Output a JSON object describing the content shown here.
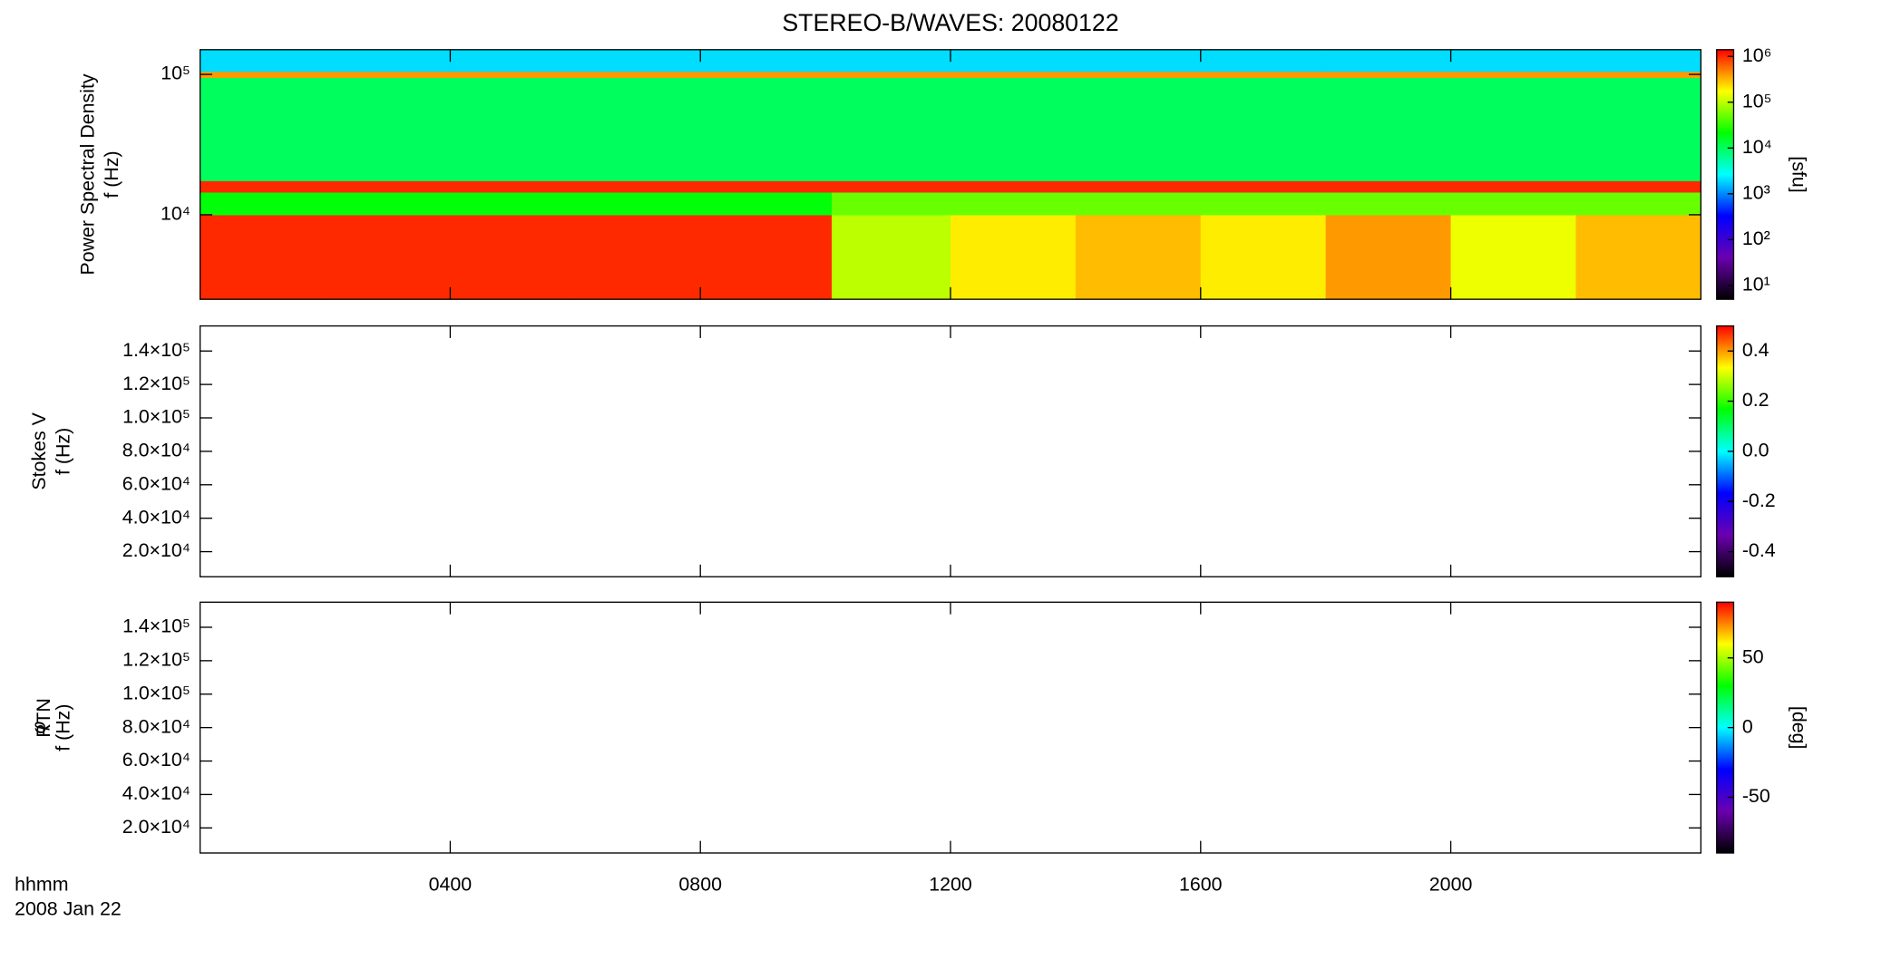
{
  "chart_data": [
    {
      "type": "heatmap",
      "title": "STEREO-B/WAVES: 20080122",
      "ylabel": [
        "Power Spectral Density",
        "f (Hz)"
      ],
      "ylog": true,
      "xlim": [
        0,
        24
      ],
      "ylim": [
        2500,
        150000
      ],
      "yticks": [
        {
          "value": 10000,
          "label": "10⁴"
        },
        {
          "value": 100000,
          "label": "10⁵"
        }
      ],
      "x_edges": [
        0,
        2,
        4,
        6,
        8,
        10.1,
        12,
        14,
        16,
        18,
        20,
        22,
        24
      ],
      "y_edges": [
        2500,
        10000,
        14500,
        17500,
        95000,
        105000,
        150000
      ],
      "z": [
        [
          1000000,
          1000000,
          1000000,
          1000000,
          1000000,
          100000,
          200000,
          300000,
          200000,
          400000,
          150000,
          300000
        ],
        [
          20000,
          20000,
          20000,
          20000,
          20000,
          50000,
          50000,
          50000,
          50000,
          50000,
          50000,
          50000
        ],
        [
          1000000,
          1000000,
          1000000,
          1000000,
          1000000,
          1000000,
          1000000,
          1000000,
          1000000,
          1000000,
          1000000,
          1000000
        ],
        [
          10000,
          10000,
          10000,
          10000,
          10000,
          10000,
          10000,
          10000,
          10000,
          10000,
          10000,
          10000
        ],
        [
          400000,
          400000,
          400000,
          400000,
          400000,
          400000,
          400000,
          400000,
          400000,
          400000,
          400000,
          400000
        ],
        [
          2000,
          2000,
          2000,
          2000,
          2000,
          2000,
          2000,
          2000,
          2000,
          2000,
          2000,
          2000
        ]
      ],
      "colorbar": {
        "log": true,
        "lim": [
          5,
          1400000
        ],
        "label": "[sfu]",
        "colormap": [
          "#000000",
          "#6a00b0",
          "#0000ff",
          "#00ffff",
          "#00ff00",
          "#ffff00",
          "#ff0000"
        ],
        "ticks": [
          {
            "value": 10,
            "label": "10¹"
          },
          {
            "value": 100,
            "label": "10²"
          },
          {
            "value": 1000,
            "label": "10³"
          },
          {
            "value": 10000,
            "label": "10⁴"
          },
          {
            "value": 100000,
            "label": "10⁵"
          },
          {
            "value": 1000000,
            "label": "10⁶"
          }
        ]
      }
    },
    {
      "type": "heatmap",
      "ylabel": [
        "Stokes V",
        "f (Hz)"
      ],
      "ylog": false,
      "xlim": [
        0,
        24
      ],
      "ylim": [
        5000,
        155000
      ],
      "yticks": [
        {
          "value": 20000,
          "label": "2.0×10⁴"
        },
        {
          "value": 40000,
          "label": "4.0×10⁴"
        },
        {
          "value": 60000,
          "label": "6.0×10⁴"
        },
        {
          "value": 80000,
          "label": "8.0×10⁴"
        },
        {
          "value": 100000,
          "label": "1.0×10⁵"
        },
        {
          "value": 120000,
          "label": "1.2×10⁵"
        },
        {
          "value": 140000,
          "label": "1.4×10⁵"
        }
      ],
      "colorbar": {
        "log": false,
        "lim": [
          -0.5,
          0.5
        ],
        "colormap": [
          "#000000",
          "#6a00b0",
          "#0000ff",
          "#00ffff",
          "#00ff00",
          "#ffff00",
          "#ff0000"
        ],
        "ticks": [
          -0.4,
          -0.2,
          {
            "value": 0,
            "label": "0.0"
          },
          0.2,
          0.4
        ]
      }
    },
    {
      "type": "heatmap",
      "ylabel": [
        "φ",
        "f (Hz)"
      ],
      "ylabel_sub": "RTN",
      "ylog": false,
      "xlim": [
        0,
        24
      ],
      "ylim": [
        5000,
        155000
      ],
      "yticks": [
        {
          "value": 20000,
          "label": "2.0×10⁴"
        },
        {
          "value": 40000,
          "label": "4.0×10⁴"
        },
        {
          "value": 60000,
          "label": "6.0×10⁴"
        },
        {
          "value": 80000,
          "label": "8.0×10⁴"
        },
        {
          "value": 100000,
          "label": "1.0×10⁵"
        },
        {
          "value": 120000,
          "label": "1.2×10⁵"
        },
        {
          "value": 140000,
          "label": "1.4×10⁵"
        }
      ],
      "xticks": [
        {
          "value": 4,
          "label": "0400"
        },
        {
          "value": 8,
          "label": "0800"
        },
        {
          "value": 12,
          "label": "1200"
        },
        {
          "value": 16,
          "label": "1600"
        },
        {
          "value": 20,
          "label": "2000"
        }
      ],
      "xlabel": [
        "hhmm",
        "2008 Jan 22"
      ],
      "colorbar": {
        "log": false,
        "lim": [
          -90,
          90
        ],
        "label": "[deg]",
        "colormap": [
          "#000000",
          "#6a00b0",
          "#0000ff",
          "#00ffff",
          "#00ff00",
          "#ffff00",
          "#ff0000"
        ],
        "ticks": [
          -50,
          0,
          50
        ]
      }
    }
  ]
}
